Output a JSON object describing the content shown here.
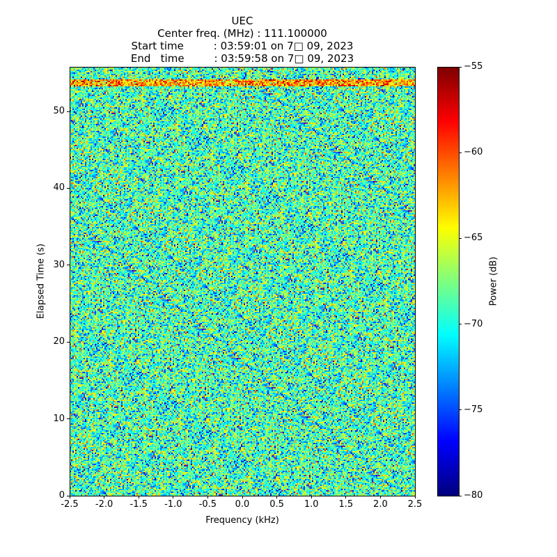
{
  "chart_data": {
    "type": "heatmap",
    "title_lines": [
      "UEC",
      "Center freq. (MHz) : 111.100000",
      "Start time         : 03:59:01 on 7□ 09, 2023",
      "End   time         : 03:59:58 on 7□ 09, 2023"
    ],
    "xlabel": "Frequency (kHz)",
    "ylabel": "Elapsed Time (s)",
    "xlim": [
      -2.5,
      2.5
    ],
    "ylim": [
      0,
      55.8
    ],
    "xticks": [
      "-2.5",
      "-2.0",
      "-1.5",
      "-1.0",
      "-0.5",
      "0.0",
      "0.5",
      "1.0",
      "1.5",
      "2.0",
      "2.5"
    ],
    "xtick_values": [
      -2.5,
      -2.0,
      -1.5,
      -1.0,
      -0.5,
      0.0,
      0.5,
      1.0,
      1.5,
      2.0,
      2.5
    ],
    "yticks": [
      "0",
      "10",
      "20",
      "30",
      "40",
      "50"
    ],
    "ytick_values": [
      0,
      10,
      20,
      30,
      40,
      50
    ],
    "colormap": "jet",
    "colorbar": {
      "label": "Power (dB)",
      "range": [
        -80,
        -55
      ],
      "ticks": [
        "−55",
        "−60",
        "−65",
        "−70",
        "−75",
        "−80"
      ],
      "tick_values": [
        -55,
        -60,
        -65,
        -70,
        -75,
        -80
      ]
    },
    "noise_floor_db": -69,
    "noise_std_db": 3.5,
    "features": [
      {
        "type": "horizontal-band",
        "time_s": [
          53.2,
          54.2
        ],
        "power_db": -62
      }
    ]
  }
}
